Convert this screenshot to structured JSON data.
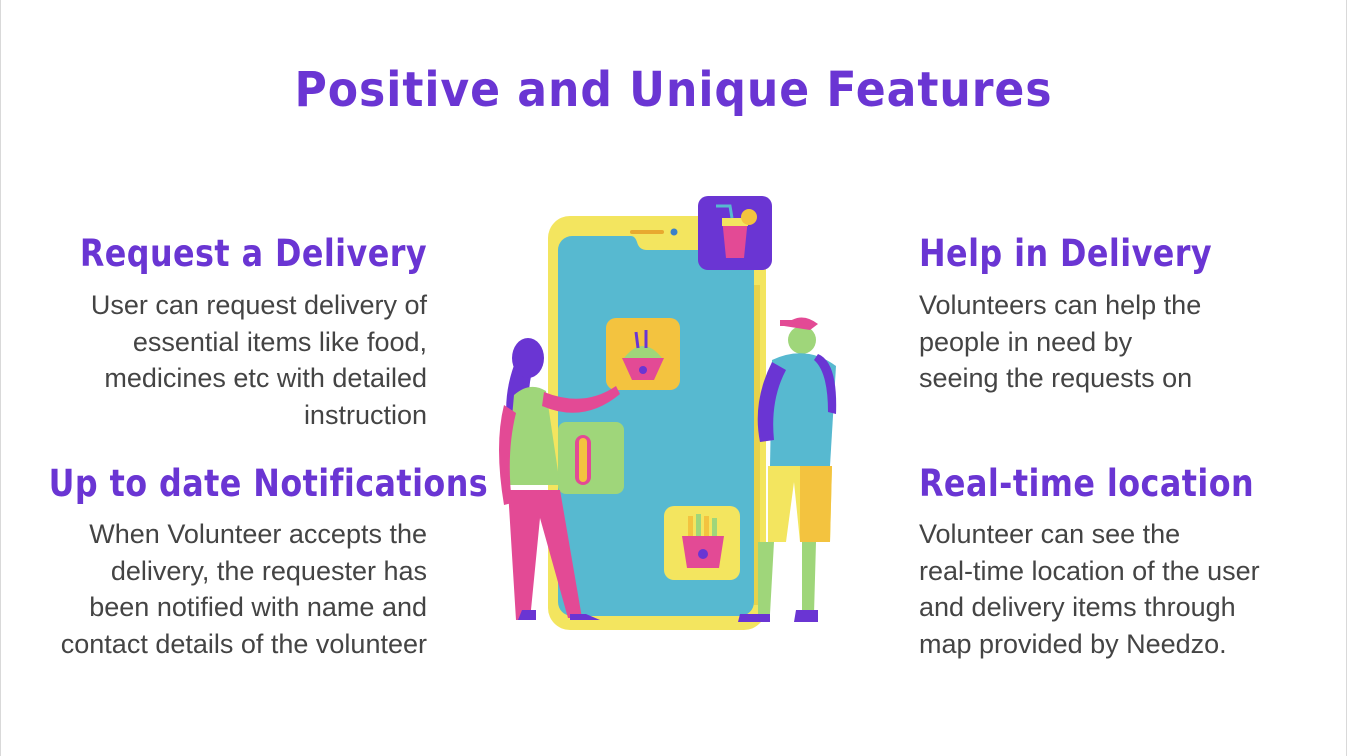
{
  "slide": {
    "title": "Positive and Unique Features"
  },
  "features": {
    "request": {
      "heading": "Request a Delivery",
      "lines": [
        "User can request delivery of",
        "essential items like food,",
        "medicines etc with detailed",
        "instruction"
      ]
    },
    "notifications": {
      "heading": "Up to date Notifications",
      "lines": [
        "When Volunteer accepts the",
        "delivery, the requester has",
        "been notified with name and",
        "contact details of the volunteer"
      ]
    },
    "help": {
      "heading": "Help in Delivery",
      "lines": [
        "Volunteers can help the",
        "people in need by",
        "seeing the requests on"
      ]
    },
    "location": {
      "heading": "Real-time location",
      "lines": [
        "Volunteer can see the",
        "real-time location of the user",
        "and delivery items through",
        "map provided by Needzo."
      ]
    }
  },
  "colors": {
    "accent_purple": "#6a35d3",
    "body_text": "#444444",
    "phone_yellow": "#f3e55f",
    "screen_teal": "#57b9d0",
    "pink": "#e34a95",
    "green": "#9fd67a"
  },
  "illustration": {
    "icons": [
      "drink-icon",
      "noodle-box-icon",
      "hotdog-icon",
      "fries-icon"
    ]
  }
}
